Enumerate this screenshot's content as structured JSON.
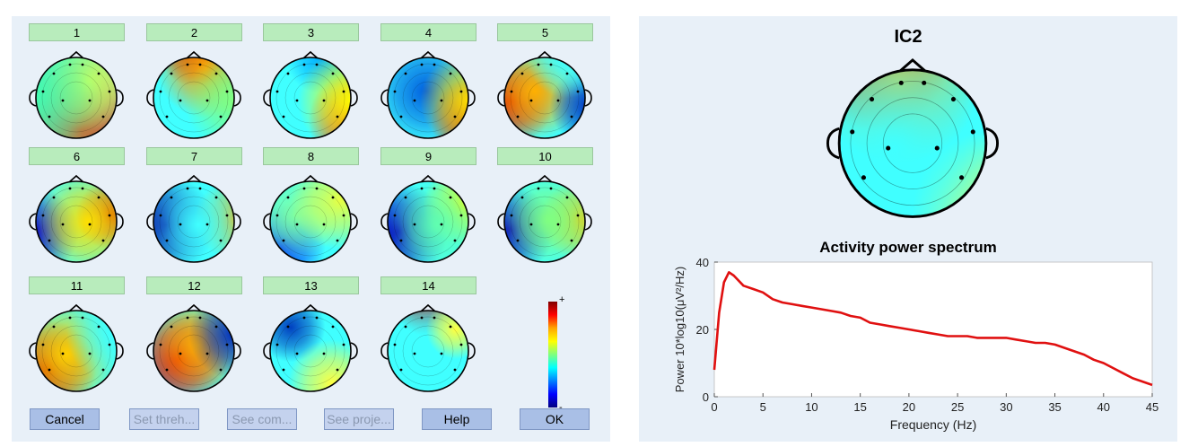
{
  "components": [
    {
      "label": "1",
      "map": [
        [
          0.55,
          0.85,
          0.8,
          "#ff3000"
        ],
        [
          0.62,
          0.35,
          0.5,
          "#ffff40"
        ],
        [
          0.05,
          0.5,
          0.9,
          "#40ffb0"
        ]
      ]
    },
    {
      "label": "2",
      "map": [
        [
          0.5,
          0.05,
          0.35,
          "#b00000"
        ],
        [
          0.62,
          0.22,
          0.5,
          "#ffa000"
        ],
        [
          0.9,
          0.55,
          0.5,
          "#80ff80"
        ]
      ]
    },
    {
      "label": "3",
      "map": [
        [
          0.6,
          0.12,
          0.35,
          "#00b0ff"
        ],
        [
          0.98,
          0.75,
          0.5,
          "#ff0000"
        ],
        [
          0.92,
          0.55,
          0.55,
          "#ffff00"
        ]
      ]
    },
    {
      "label": "4",
      "map": [
        [
          0.48,
          0.45,
          0.55,
          "#0060e0"
        ],
        [
          0.98,
          0.75,
          0.45,
          "#d00000"
        ],
        [
          0.92,
          0.55,
          0.5,
          "#ffe000"
        ]
      ]
    },
    {
      "label": "5",
      "map": [
        [
          0.15,
          0.55,
          0.45,
          "#d00000"
        ],
        [
          0.4,
          0.45,
          0.5,
          "#ffb000"
        ],
        [
          0.95,
          0.6,
          0.4,
          "#0030c0"
        ],
        [
          0.72,
          0.12,
          0.4,
          "#40ffff"
        ]
      ]
    },
    {
      "label": "6",
      "map": [
        [
          0.08,
          0.62,
          0.45,
          "#0000d0"
        ],
        [
          0.85,
          0.45,
          0.35,
          "#c00000"
        ],
        [
          0.62,
          0.52,
          0.55,
          "#ffe000"
        ]
      ]
    },
    {
      "label": "7",
      "map": [
        [
          0.22,
          0.55,
          0.5,
          "#0000a0"
        ],
        [
          0.9,
          0.5,
          0.4,
          "#ffb000"
        ],
        [
          0.55,
          0.55,
          0.5,
          "#40ffff"
        ]
      ]
    },
    {
      "label": "8",
      "map": [
        [
          0.2,
          0.78,
          0.45,
          "#0040ff"
        ],
        [
          0.35,
          0.45,
          0.45,
          "#80ffa0"
        ],
        [
          0.8,
          0.3,
          0.5,
          "#e8ff40"
        ]
      ]
    },
    {
      "label": "9",
      "map": [
        [
          0.2,
          0.62,
          0.5,
          "#0000c0"
        ],
        [
          0.85,
          0.35,
          0.4,
          "#ffff00"
        ],
        [
          0.6,
          0.55,
          0.5,
          "#60ffb0"
        ]
      ]
    },
    {
      "label": "10",
      "map": [
        [
          0.15,
          0.6,
          0.45,
          "#0000c0"
        ],
        [
          0.85,
          0.5,
          0.4,
          "#ffc000"
        ],
        [
          0.55,
          0.5,
          0.5,
          "#80ff80"
        ]
      ]
    },
    {
      "label": "11",
      "map": [
        [
          0.2,
          0.7,
          0.5,
          "#c00000"
        ],
        [
          0.4,
          0.55,
          0.55,
          "#ffd000"
        ],
        [
          0.9,
          0.35,
          0.5,
          "#40ffff"
        ]
      ]
    },
    {
      "label": "12",
      "map": [
        [
          0.35,
          0.6,
          0.5,
          "#e00000"
        ],
        [
          0.55,
          0.45,
          0.5,
          "#ffb000"
        ],
        [
          0.9,
          0.35,
          0.45,
          "#0030c0"
        ]
      ]
    },
    {
      "label": "13",
      "map": [
        [
          0.5,
          0.5,
          0.65,
          "#40ffff"
        ],
        [
          0.3,
          0.28,
          0.35,
          "#0040c0"
        ],
        [
          0.72,
          0.85,
          0.45,
          "#ffff40"
        ]
      ]
    },
    {
      "label": "14",
      "map": [
        [
          0.5,
          0.02,
          0.35,
          "#c00000"
        ],
        [
          0.55,
          0.5,
          0.6,
          "#40ffff"
        ],
        [
          0.78,
          0.3,
          0.3,
          "#ffff40"
        ]
      ]
    }
  ],
  "colorbar": {
    "max_label": "+",
    "min_label": "-"
  },
  "buttons": {
    "cancel": "Cancel",
    "set_threshold": "Set threh...",
    "see_comp": "See com...",
    "see_proj": "See proje...",
    "help": "Help",
    "ok": "OK"
  },
  "ic_panel": {
    "title": "IC2",
    "map": [
      [
        0.3,
        0.05,
        0.4,
        "#a00000"
      ],
      [
        0.42,
        0.18,
        0.45,
        "#ffb000"
      ],
      [
        0.95,
        0.9,
        0.45,
        "#ffff40"
      ],
      [
        0.4,
        0.55,
        0.7,
        "#40ffff"
      ]
    ]
  },
  "chart_data": {
    "type": "line",
    "title": "Activity power spectrum",
    "xlabel": "Frequency (Hz)",
    "ylabel": "Power 10*log10(μV²/Hz)",
    "xlim": [
      0,
      45
    ],
    "ylim": [
      0,
      40
    ],
    "xticks": [
      0,
      5,
      10,
      15,
      20,
      25,
      30,
      35,
      40,
      45
    ],
    "yticks": [
      0,
      20,
      40
    ],
    "line_color": "#e01010",
    "x": [
      0,
      0.5,
      1,
      1.5,
      2,
      3,
      4,
      5,
      6,
      7,
      8,
      9,
      10,
      11,
      12,
      13,
      14,
      15,
      16,
      17,
      18,
      19,
      20,
      21,
      22,
      23,
      24,
      25,
      26,
      27,
      28,
      29,
      30,
      31,
      32,
      33,
      34,
      35,
      36,
      37,
      38,
      39,
      40,
      41,
      42,
      43,
      44,
      45
    ],
    "y": [
      8,
      25,
      34,
      37,
      36,
      33,
      32,
      31,
      29,
      28,
      27.5,
      27,
      26.5,
      26,
      25.5,
      25,
      24,
      23.5,
      22,
      21.5,
      21,
      20.5,
      20,
      19.5,
      19,
      18.5,
      18,
      18,
      18,
      17.5,
      17.5,
      17.5,
      17.5,
      17,
      16.5,
      16,
      16,
      15.5,
      14.5,
      13.5,
      12.5,
      11,
      10,
      8.5,
      7,
      5.5,
      4.5,
      3.5
    ]
  }
}
